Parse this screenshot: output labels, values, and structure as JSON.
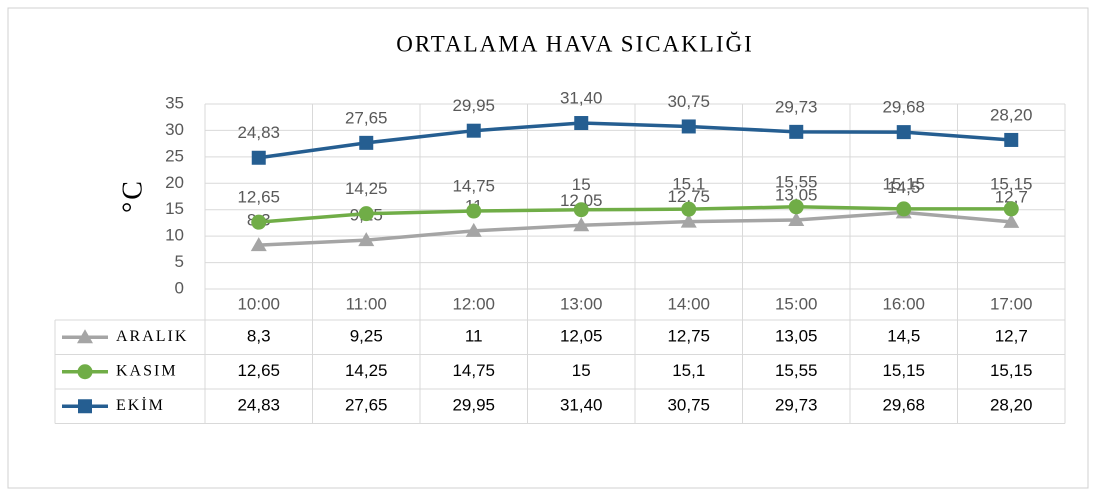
{
  "chart_data": {
    "type": "line",
    "title": "ORTALAMA HAVA SICAKLIĞI",
    "y_label": "°C",
    "categories": [
      "10:00",
      "11:00",
      "12:00",
      "13:00",
      "14:00",
      "15:00",
      "16:00",
      "17:00"
    ],
    "series": [
      {
        "name": "ARALIK",
        "color": "#a5a5a5",
        "marker": "triangle",
        "values": [
          8.3,
          9.25,
          11,
          12.05,
          12.75,
          13.05,
          14.5,
          12.7
        ],
        "value_labels": [
          "8,3",
          "9,25",
          "11",
          "12,05",
          "12,75",
          "13,05",
          "14,5",
          "12,7"
        ]
      },
      {
        "name": "KASIM",
        "color": "#70ad47",
        "marker": "circle",
        "values": [
          12.65,
          14.25,
          14.75,
          15,
          15.1,
          15.55,
          15.15,
          15.15
        ],
        "value_labels": [
          "12,65",
          "14,25",
          "14,75",
          "15",
          "15,1",
          "15,55",
          "15,15",
          "15,15"
        ]
      },
      {
        "name": "EKİM",
        "color": "#255e91",
        "marker": "square",
        "values": [
          24.83,
          27.65,
          29.95,
          31.4,
          30.75,
          29.73,
          29.68,
          28.2
        ],
        "value_labels": [
          "24,83",
          "27,65",
          "29,95",
          "31,40",
          "30,75",
          "29,73",
          "29,68",
          "28,20"
        ]
      }
    ],
    "ylim": [
      0,
      35
    ],
    "yticks": [
      0,
      5,
      10,
      15,
      20,
      25,
      30,
      35
    ],
    "grid": true
  }
}
